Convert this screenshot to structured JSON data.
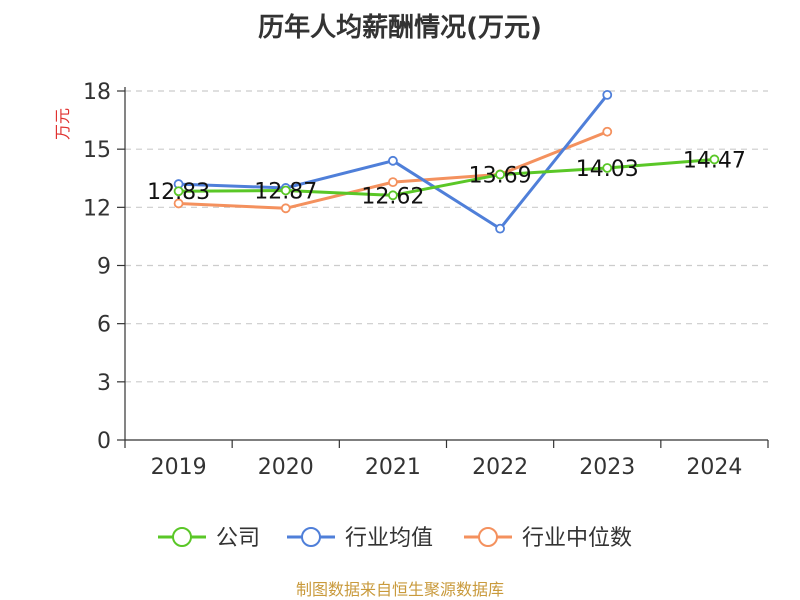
{
  "chart_data": {
    "type": "line",
    "title": "历年人均薪酬情况(万元)",
    "ylabel": "万元",
    "categories": [
      "2019",
      "2020",
      "2021",
      "2022",
      "2023",
      "2024"
    ],
    "ylim": [
      0,
      18
    ],
    "yticks": [
      0,
      3,
      6,
      9,
      12,
      15,
      18
    ],
    "grid": "horizontal dashed",
    "legend_position": "bottom",
    "series": [
      {
        "name": "公司",
        "color": "#5ac727",
        "values": [
          12.83,
          12.87,
          12.62,
          13.69,
          14.03,
          14.47
        ],
        "labels": [
          "12.83",
          "12.87",
          "12.62",
          "13.69",
          "14.03",
          "14.47"
        ]
      },
      {
        "name": "行业均值",
        "color": "#4f7fd9",
        "values": [
          13.2,
          13.0,
          14.4,
          10.9,
          17.8,
          null
        ]
      },
      {
        "name": "行业中位数",
        "color": "#f4915e",
        "values": [
          12.2,
          11.95,
          13.3,
          13.7,
          15.9,
          null
        ]
      }
    ]
  },
  "footer": {
    "source": "制图数据来自恒生聚源数据库"
  }
}
